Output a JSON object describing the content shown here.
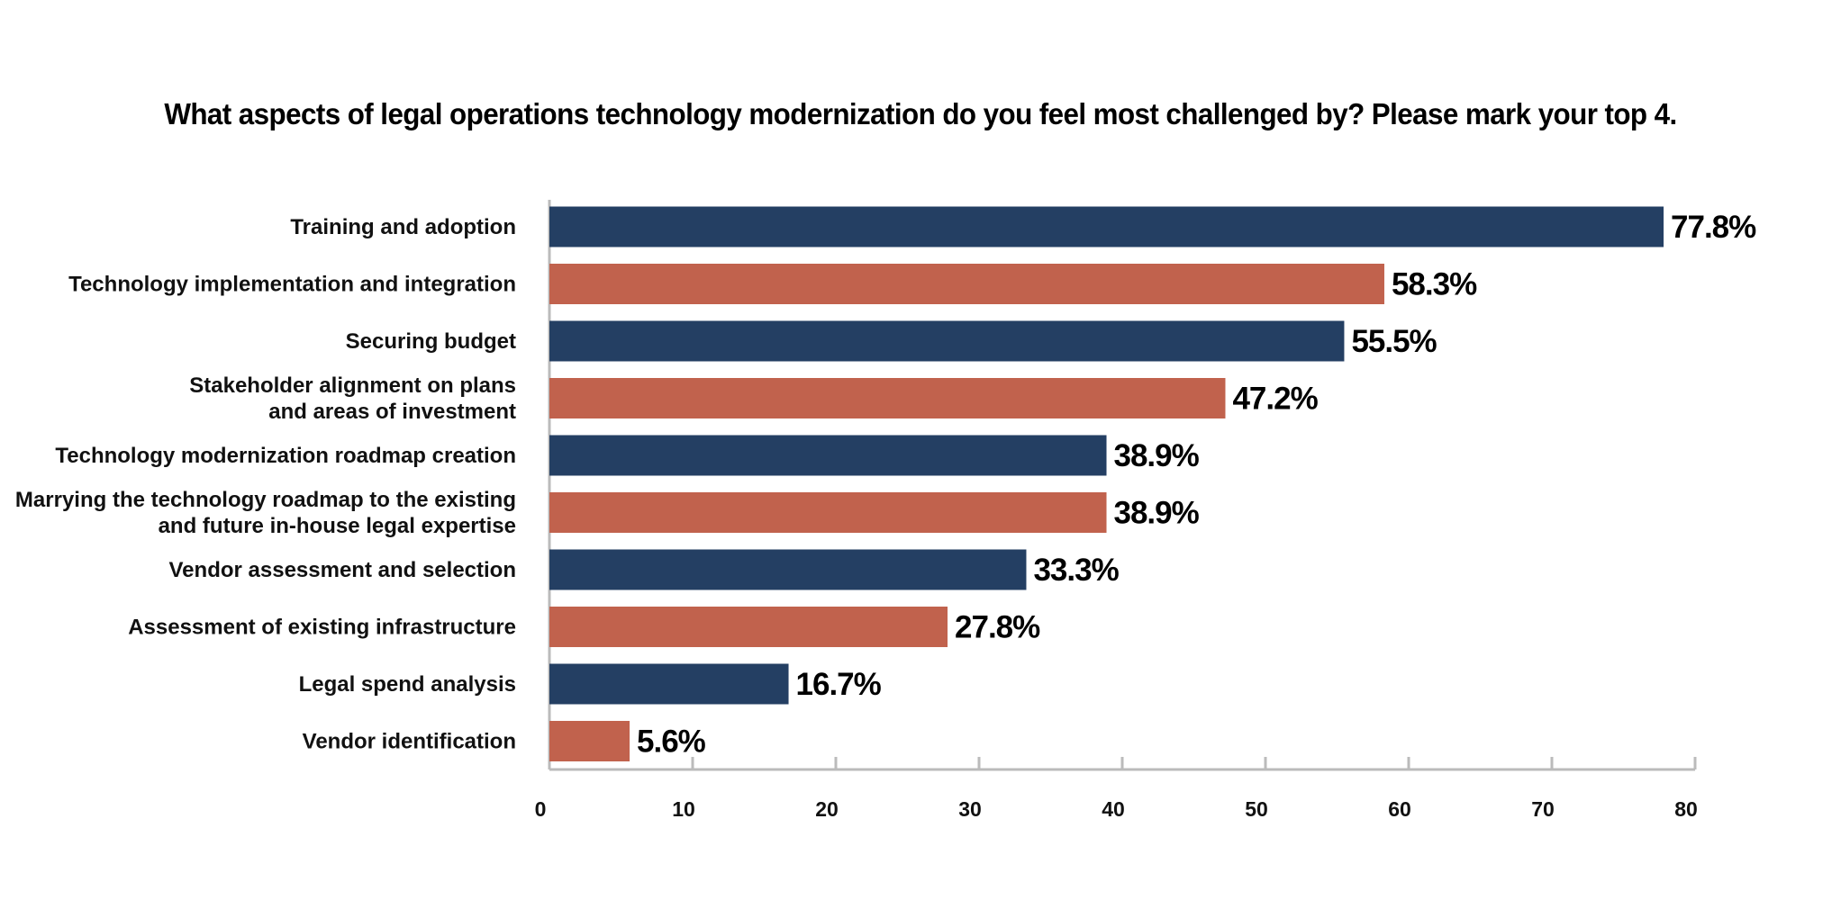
{
  "chart_data": {
    "type": "bar",
    "orientation": "horizontal",
    "title": "What aspects of legal operations technology modernization do you feel most challenged by? Please mark your top 4.",
    "xlabel": "",
    "ylabel": "",
    "xlim": [
      0,
      80
    ],
    "xticks": [
      "0",
      "10",
      "20",
      "30",
      "40",
      "50",
      "60",
      "70",
      "80"
    ],
    "grid": false,
    "legend": "none",
    "categories": [
      [
        "Training and adoption"
      ],
      [
        "Technology implementation and integration"
      ],
      [
        "Securing budget"
      ],
      [
        "Stakeholder alignment on plans",
        "and areas of investment"
      ],
      [
        "Technology modernization roadmap creation"
      ],
      [
        "Marrying the technology roadmap to the existing",
        "and future in-house legal expertise"
      ],
      [
        "Vendor assessment and selection"
      ],
      [
        "Assessment of existing infrastructure"
      ],
      [
        "Legal spend analysis"
      ],
      [
        "Vendor identification"
      ]
    ],
    "values": [
      77.8,
      58.3,
      55.5,
      47.2,
      38.9,
      38.9,
      33.3,
      27.8,
      16.7,
      5.6
    ],
    "value_labels": [
      "77.8%",
      "58.3%",
      "55.5%",
      "47.2%",
      "38.9%",
      "38.9%",
      "33.3%",
      "27.8%",
      "16.7%",
      "5.6%"
    ],
    "colors": [
      "#243f63",
      "#c1624d",
      "#243f63",
      "#c1624d",
      "#243f63",
      "#c1624d",
      "#243f63",
      "#c1624d",
      "#243f63",
      "#c1624d"
    ],
    "axis_color": "#bbbbbb"
  }
}
